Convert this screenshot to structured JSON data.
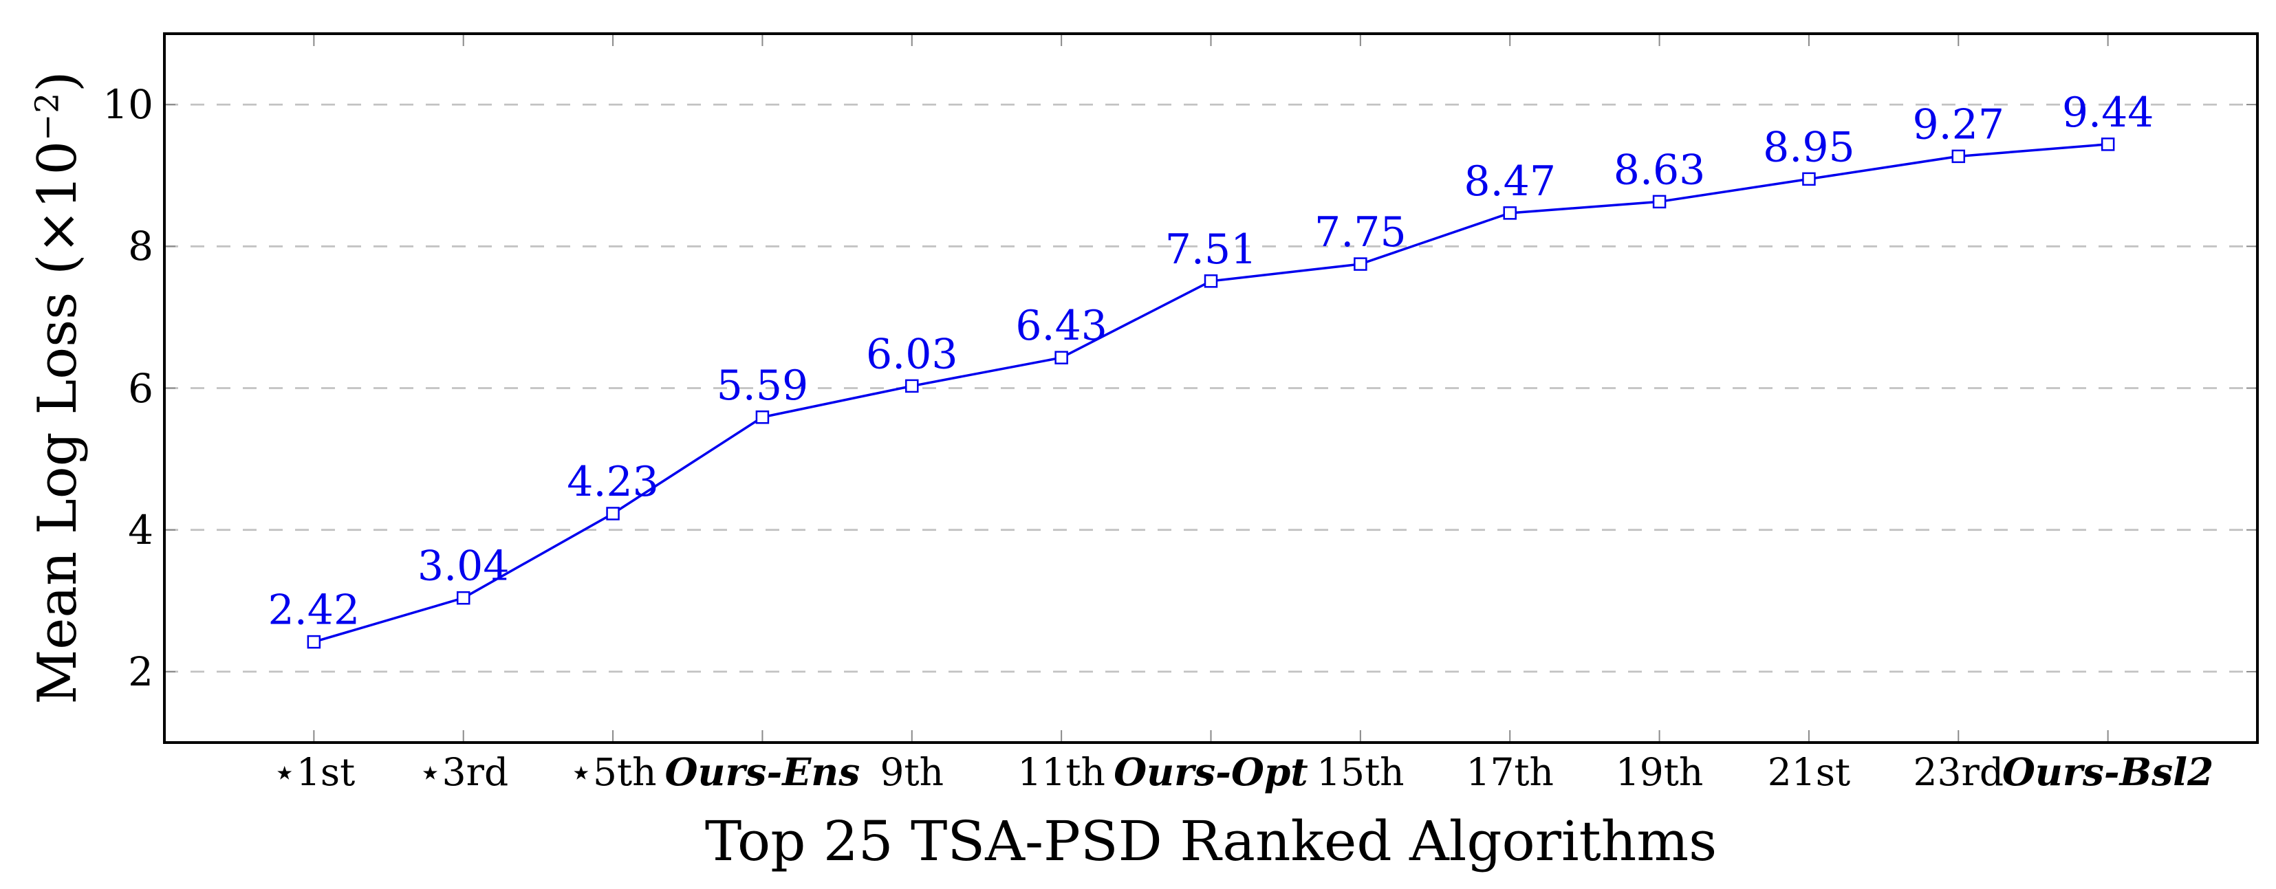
{
  "chart_data": {
    "type": "line",
    "title": "",
    "xlabel": "Top 25 TSA-PSD Ranked Algorithms",
    "ylabel": "Mean Log Loss (×10−2)",
    "ylabel_prefix": "Mean Log Loss (×10",
    "ylabel_sup": "−2",
    "ylabel_suffix": ")",
    "categories": [
      {
        "label": "⋆1st",
        "emphasis": false
      },
      {
        "label": "⋆3rd",
        "emphasis": false
      },
      {
        "label": "⋆5th",
        "emphasis": false
      },
      {
        "label": "Ours-Ens",
        "emphasis": true
      },
      {
        "label": "9th",
        "emphasis": false
      },
      {
        "label": "11th",
        "emphasis": false
      },
      {
        "label": "Ours-Opt",
        "emphasis": true
      },
      {
        "label": "15th",
        "emphasis": false
      },
      {
        "label": "17th",
        "emphasis": false
      },
      {
        "label": "19th",
        "emphasis": false
      },
      {
        "label": "21st",
        "emphasis": false
      },
      {
        "label": "23rd",
        "emphasis": false
      },
      {
        "label": "Ours-Bsl2",
        "emphasis": true
      }
    ],
    "values": [
      2.42,
      3.04,
      4.23,
      5.59,
      6.03,
      6.43,
      7.51,
      7.75,
      8.47,
      8.63,
      8.95,
      9.27,
      9.44
    ],
    "point_labels": [
      "2.42",
      "3.04",
      "4.23",
      "5.59",
      "6.03",
      "6.43",
      "7.51",
      "7.75",
      "8.47",
      "8.63",
      "8.95",
      "9.27",
      "9.44"
    ],
    "y_ticks": [
      2,
      4,
      6,
      8,
      10
    ],
    "y_tick_labels": [
      "2",
      "4",
      "6",
      "8",
      "10"
    ],
    "ylim": [
      1,
      11
    ],
    "grid": "horizontal-dashed",
    "legend": "none",
    "marker": "open-square",
    "colors": {
      "line": "#0000EE",
      "point_label_text": "#0000EE",
      "grid": "#C2C2C2",
      "tick": "#8A8A8A",
      "frame": "#000000",
      "text": "#000000"
    }
  }
}
